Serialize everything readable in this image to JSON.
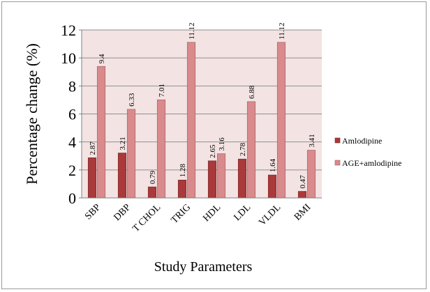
{
  "chart_data": {
    "type": "bar",
    "categories": [
      "SBP",
      "DBP",
      "T CHOL",
      "TRIG",
      "HDL",
      "LDL",
      "VLDL",
      "BMI"
    ],
    "series": [
      {
        "name": "Amlodipine",
        "values": [
          2.87,
          3.21,
          0.79,
          1.28,
          2.65,
          2.78,
          1.64,
          0.47
        ],
        "labels": [
          "2.87",
          "3.21",
          "0.79",
          "1.28",
          "2.65",
          "2.78",
          "1.64",
          "0.47"
        ]
      },
      {
        "name": "AGE+amlodipine",
        "values": [
          9.4,
          6.33,
          7.01,
          11.12,
          3.16,
          6.88,
          11.12,
          3.41
        ],
        "labels": [
          "9.4",
          "6.33",
          "7.01",
          "11.12",
          "3.16",
          "6.88",
          "11.12",
          "3.41"
        ]
      }
    ],
    "xlabel": "Study Parameters",
    "ylabel": "Percentage change (%)",
    "ylim": [
      0,
      12
    ],
    "yticks": [
      0,
      2,
      4,
      6,
      8,
      10,
      12
    ],
    "grid": true,
    "legend": "right",
    "colors": {
      "series": [
        "#a9393a",
        "#d98a8c"
      ],
      "series_stroke": [
        "#7a2526",
        "#a35a5c"
      ],
      "plot_background": "#f3e3e3",
      "gridline": "#8f8f8f"
    }
  }
}
